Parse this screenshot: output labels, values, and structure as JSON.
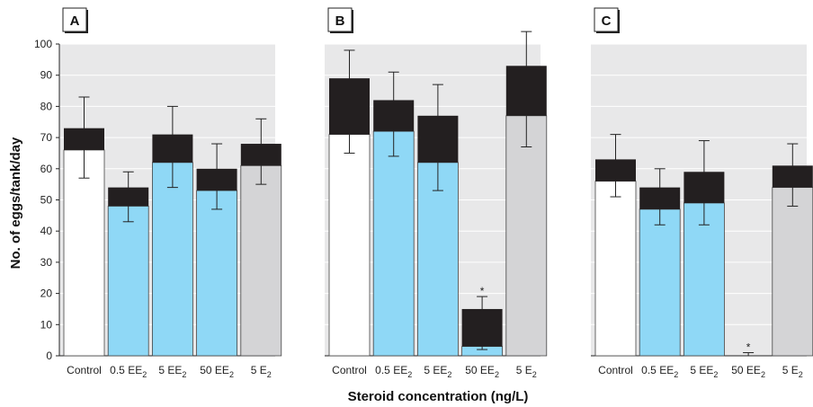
{
  "chart_data": {
    "type": "bar",
    "ylabel": "No. of eggs/tank/day",
    "xlabel": "Steroid concentration (ng/L)",
    "ylim": [
      0,
      100
    ],
    "yticks": [
      0,
      10,
      20,
      30,
      40,
      50,
      60,
      70,
      80,
      90,
      100
    ],
    "categories": [
      {
        "main": "Control",
        "sub": ""
      },
      {
        "main": "0.5 EE",
        "sub": "2"
      },
      {
        "main": "5 EE",
        "sub": "2"
      },
      {
        "main": "50 EE",
        "sub": "2"
      },
      {
        "main": "5 E",
        "sub": "2"
      }
    ],
    "significance_marker": "*",
    "colors": {
      "control": "#ffffff",
      "ee2": "#8fd8f6",
      "e2": "#d4d4d6",
      "cap": "#231f20",
      "plot_bg": "#e8e8e9",
      "grid": "#ffffff"
    },
    "panels": [
      {
        "label": "A",
        "bars": [
          {
            "low": 66,
            "high": 73,
            "err_low": 57,
            "err_high": 83,
            "sig": false
          },
          {
            "low": 48,
            "high": 54,
            "err_low": 43,
            "err_high": 59,
            "sig": false
          },
          {
            "low": 62,
            "high": 71,
            "err_low": 54,
            "err_high": 80,
            "sig": false
          },
          {
            "low": 53,
            "high": 60,
            "err_low": 47,
            "err_high": 68,
            "sig": false
          },
          {
            "low": 61,
            "high": 68,
            "err_low": 55,
            "err_high": 76,
            "sig": false
          }
        ]
      },
      {
        "label": "B",
        "bars": [
          {
            "low": 71,
            "high": 89,
            "err_low": 65,
            "err_high": 98,
            "sig": false
          },
          {
            "low": 72,
            "high": 82,
            "err_low": 64,
            "err_high": 91,
            "sig": false
          },
          {
            "low": 62,
            "high": 77,
            "err_low": 53,
            "err_high": 87,
            "sig": false
          },
          {
            "low": 3,
            "high": 15,
            "err_low": 2,
            "err_high": 19,
            "sig": true
          },
          {
            "low": 77,
            "high": 93,
            "err_low": 67,
            "err_high": 104,
            "sig": false
          }
        ]
      },
      {
        "label": "C",
        "bars": [
          {
            "low": 56,
            "high": 63,
            "err_low": 51,
            "err_high": 71,
            "sig": false
          },
          {
            "low": 47,
            "high": 54,
            "err_low": 42,
            "err_high": 60,
            "sig": false
          },
          {
            "low": 49,
            "high": 59,
            "err_low": 42,
            "err_high": 69,
            "sig": false
          },
          {
            "low": 0,
            "high": 0,
            "err_low": 0,
            "err_high": 1,
            "sig": true
          },
          {
            "low": 54,
            "high": 61,
            "err_low": 48,
            "err_high": 68,
            "sig": false
          }
        ]
      }
    ]
  }
}
